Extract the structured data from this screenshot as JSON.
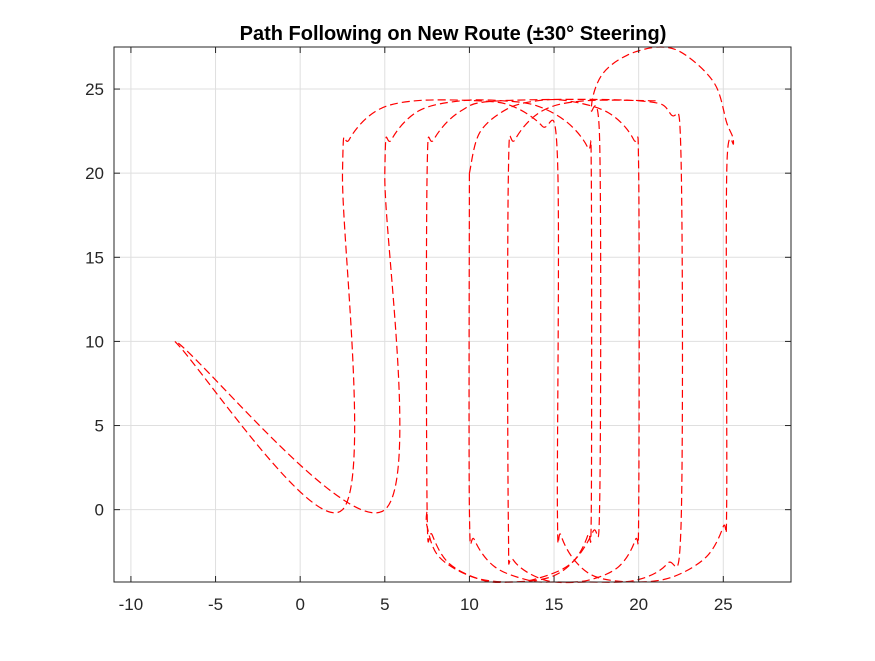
{
  "chart_data": {
    "type": "line",
    "title": "Path Following on New Route (±30° Steering)",
    "xlabel": "",
    "ylabel": "",
    "xlim": [
      -11,
      29
    ],
    "ylim": [
      -4.3,
      27.5
    ],
    "xticks": [
      -10,
      -5,
      0,
      5,
      10,
      15,
      20,
      25
    ],
    "yticks": [
      0,
      5,
      10,
      15,
      20,
      25
    ],
    "grid": true,
    "line_style": "dashed",
    "color": "#ff0000",
    "series": [
      {
        "name": "",
        "segments": [
          [
            [
              -7.4,
              10.0
            ],
            [
              2.5,
              0.0
            ],
            [
              2.5,
              20.0
            ],
            [
              2.9,
              22.0
            ],
            [
              4.5,
              23.7
            ],
            [
              6.8,
              24.3
            ],
            [
              10.5,
              24.3
            ],
            [
              12.5,
              24.0
            ],
            [
              14.3,
              22.8
            ],
            [
              15.2,
              21.0
            ],
            [
              15.2,
              0.0
            ],
            [
              15.4,
              -1.5
            ],
            [
              16.2,
              -3.0
            ],
            [
              17.5,
              -4.0
            ],
            [
              19.8,
              -4.3
            ],
            [
              22.0,
              -4.0
            ],
            [
              24.0,
              -2.8
            ],
            [
              25.0,
              -1.0
            ],
            [
              25.2,
              0.5
            ],
            [
              25.2,
              20.0
            ],
            [
              25.6,
              21.8
            ],
            [
              25.2,
              23.0
            ],
            [
              24.5,
              25.3
            ],
            [
              22.8,
              27.0
            ],
            [
              21.3,
              27.5
            ],
            [
              19.3,
              27.0
            ],
            [
              17.8,
              25.8
            ],
            [
              17.2,
              23.8
            ],
            [
              17.7,
              21.8
            ],
            [
              17.7,
              0.5
            ],
            [
              17.3,
              -1.3
            ],
            [
              16.0,
              -3.2
            ],
            [
              14.0,
              -4.1
            ],
            [
              12.5,
              -4.3
            ],
            [
              10.8,
              -4.2
            ],
            [
              8.8,
              -3.2
            ],
            [
              7.8,
              -1.5
            ],
            [
              7.5,
              0.0
            ],
            [
              7.5,
              20.0
            ],
            [
              7.9,
              22.0
            ],
            [
              9.5,
              23.7
            ],
            [
              11.8,
              24.3
            ],
            [
              20.0,
              24.3
            ],
            [
              21.9,
              23.5
            ],
            [
              22.5,
              21.0
            ],
            [
              22.5,
              -1.0
            ],
            [
              21.7,
              -3.2
            ],
            [
              19.8,
              -4.2
            ],
            [
              17.0,
              -4.3
            ],
            [
              14.5,
              -4.2
            ],
            [
              12.6,
              -3.0
            ],
            [
              12.3,
              -1.0
            ],
            [
              12.3,
              20.0
            ],
            [
              12.7,
              22.0
            ],
            [
              14.3,
              23.7
            ],
            [
              16.8,
              24.3
            ],
            [
              21.0,
              24.3
            ]
          ],
          [
            [
              -7.2,
              9.9
            ],
            [
              5.0,
              0.0
            ],
            [
              5.0,
              20.0
            ],
            [
              5.4,
              22.0
            ],
            [
              7.0,
              23.7
            ],
            [
              9.5,
              24.3
            ],
            [
              12.0,
              24.3
            ],
            [
              14.0,
              24.0
            ],
            [
              15.8,
              23.0
            ],
            [
              17.0,
              21.5
            ],
            [
              17.2,
              20.0
            ],
            [
              17.2,
              0.0
            ],
            [
              17.0,
              -1.5
            ],
            [
              16.2,
              -3.0
            ],
            [
              14.8,
              -4.0
            ],
            [
              12.5,
              -4.3
            ],
            [
              10.2,
              -4.0
            ],
            [
              8.2,
              -2.8
            ],
            [
              7.5,
              -1.0
            ],
            [
              7.5,
              0.0
            ]
          ],
          [
            [
              10.0,
              20.0
            ],
            [
              10.0,
              0.0
            ],
            [
              10.3,
              -1.8
            ],
            [
              11.5,
              -3.4
            ],
            [
              13.5,
              -4.2
            ],
            [
              15.0,
              -4.3
            ],
            [
              17.0,
              -4.2
            ],
            [
              18.8,
              -3.4
            ],
            [
              19.8,
              -1.8
            ],
            [
              20.0,
              0.0
            ],
            [
              20.0,
              20.0
            ],
            [
              19.7,
              22.0
            ],
            [
              18.2,
              23.6
            ],
            [
              15.8,
              24.3
            ],
            [
              14.0,
              24.3
            ],
            [
              12.2,
              23.8
            ],
            [
              10.6,
              22.4
            ],
            [
              10.0,
              20.0
            ]
          ]
        ]
      }
    ]
  }
}
